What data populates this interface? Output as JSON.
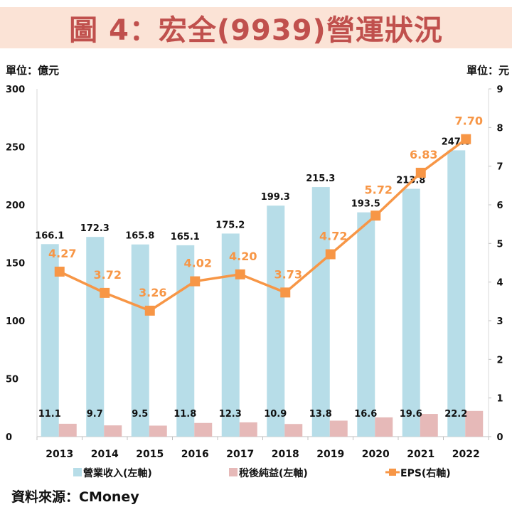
{
  "title": "圖 4：宏全(9939)營運狀況",
  "source": "資料來源：CMoney",
  "colors": {
    "revenue": "#b7dde8",
    "net_income": "#e6b9b8",
    "eps": "#f79646",
    "title_bg": "#fbe3d6",
    "title_text": "#c0504d"
  },
  "chart_data": {
    "type": "bar+line",
    "categories": [
      "2013",
      "2014",
      "2015",
      "2016",
      "2017",
      "2018",
      "2019",
      "2020",
      "2021",
      "2022"
    ],
    "left_axis": {
      "unit_label": "單位：億元",
      "ylim": [
        0,
        300
      ],
      "ticks": [
        "0",
        "50",
        "100",
        "150",
        "200",
        "250",
        "300"
      ]
    },
    "right_axis": {
      "unit_label": "單位：元",
      "ylim": [
        0,
        9
      ],
      "ticks": [
        "0",
        "1",
        "2",
        "3",
        "4",
        "5",
        "6",
        "7",
        "8",
        "9"
      ]
    },
    "grid": false,
    "legend_position": "bottom",
    "series": [
      {
        "name": "營業收入(左軸)",
        "type": "bar",
        "axis": "left",
        "values": [
          166.1,
          172.3,
          165.8,
          165.1,
          175.2,
          199.3,
          215.3,
          193.5,
          213.8,
          247.0
        ],
        "labels": [
          "166.1",
          "172.3",
          "165.8",
          "165.1",
          "175.2",
          "199.3",
          "215.3",
          "193.5",
          "213.8",
          "247.0"
        ]
      },
      {
        "name": "稅後純益(左軸)",
        "type": "bar",
        "axis": "left",
        "values": [
          11.1,
          9.7,
          9.5,
          11.8,
          12.3,
          10.9,
          13.8,
          16.6,
          19.6,
          22.2
        ],
        "labels": [
          "11.1",
          "9.7",
          "9.5",
          "11.8",
          "12.3",
          "10.9",
          "13.8",
          "16.6",
          "19.6",
          "22.2"
        ]
      },
      {
        "name": "EPS(右軸)",
        "type": "line",
        "axis": "right",
        "values": [
          4.27,
          3.72,
          3.26,
          4.02,
          4.2,
          3.73,
          4.72,
          5.72,
          6.83,
          7.7
        ],
        "labels": [
          "4.27",
          "3.72",
          "3.26",
          "4.02",
          "4.20",
          "3.73",
          "4.72",
          "5.72",
          "6.83",
          "7.70"
        ]
      }
    ]
  }
}
